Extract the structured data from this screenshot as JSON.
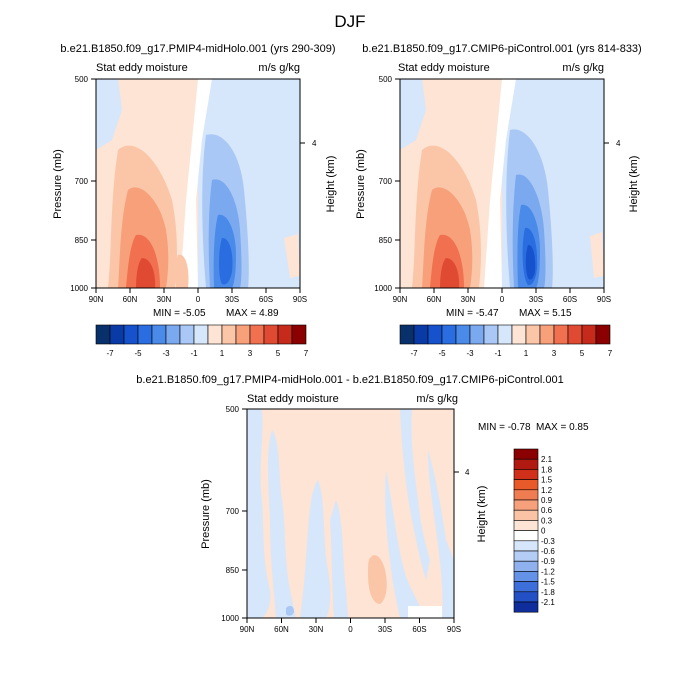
{
  "figure": {
    "season": "DJF",
    "panel_titles": [
      "b.e21.B1850.f09_g17.PMIP4-midHolo.001 (yrs 290-309)",
      "b.e21.B1850.f09_g17.CMIP6-piControl.001 (yrs 814-833)",
      "b.e21.B1850.f09_g17.PMIP4-midHolo.001 - b.e21.B1850.f09_g17.CMIP6-piControl.001"
    ]
  },
  "chart_data": [
    {
      "type": "heatmap",
      "title": "b.e21.B1850.f09_g17.PMIP4-midHolo.001 (yrs 290-309)",
      "left_label": "Stat eddy moisture",
      "right_label": "m/s g/kg",
      "ylabel": "Pressure (mb)",
      "ylabel_right": "Height (km)",
      "x_ticks": [
        "90N",
        "60N",
        "30N",
        "0",
        "30S",
        "60S",
        "90S"
      ],
      "y_ticks": [
        "500",
        "700",
        "850",
        "1000"
      ],
      "y_right_ticks": [
        "4"
      ],
      "min_label": "MIN =  -5.05",
      "max_label": "MAX =   4.89",
      "colorbar_labels": [
        "-7",
        "-5",
        "-3",
        "-1",
        "1",
        "3",
        "5",
        "7"
      ]
    },
    {
      "type": "heatmap",
      "title": "b.e21.B1850.f09_g17.CMIP6-piControl.001 (yrs 814-833)",
      "left_label": "Stat eddy moisture",
      "right_label": "m/s g/kg",
      "ylabel": "Pressure (mb)",
      "ylabel_right": "Height (km)",
      "x_ticks": [
        "90N",
        "60N",
        "30N",
        "0",
        "30S",
        "60S",
        "90S"
      ],
      "y_ticks": [
        "500",
        "700",
        "850",
        "1000"
      ],
      "y_right_ticks": [
        "4"
      ],
      "min_label": "MIN =  -5.47",
      "max_label": "MAX =   5.15",
      "colorbar_labels": [
        "-7",
        "-5",
        "-3",
        "-1",
        "1",
        "3",
        "5",
        "7"
      ]
    },
    {
      "type": "heatmap",
      "title": "b.e21.B1850.f09_g17.PMIP4-midHolo.001 - b.e21.B1850.f09_g17.CMIP6-piControl.001",
      "left_label": "Stat eddy moisture",
      "right_label": "m/s g/kg",
      "ylabel": "Pressure (mb)",
      "ylabel_right": "Height (km)",
      "x_ticks": [
        "90N",
        "60N",
        "30N",
        "0",
        "30S",
        "60S",
        "90S"
      ],
      "y_ticks": [
        "500",
        "700",
        "850",
        "1000"
      ],
      "y_right_ticks": [
        "4"
      ],
      "min_label": "MIN =  -0.78",
      "max_label": "MAX =   0.85",
      "colorbar_labels": [
        "2.1",
        "1.8",
        "1.5",
        "1.2",
        "0.9",
        "0.6",
        "0.3",
        "0",
        "-0.3",
        "-0.6",
        "-0.9",
        "-1.2",
        "-1.5",
        "-1.8",
        "-2.1"
      ]
    }
  ],
  "colors": {
    "full_scale": [
      "#08306b",
      "#0a3aa6",
      "#1552cc",
      "#2a6de0",
      "#4a8ae8",
      "#7aa9ef",
      "#aac8f5",
      "#d6e6fb",
      "#fde4d4",
      "#fbc6a8",
      "#f7a07a",
      "#f07050",
      "#e04a32",
      "#c62a1a",
      "#8b0000"
    ],
    "diff_scale": [
      "#8b0000",
      "#b01a10",
      "#d0301a",
      "#e85a2a",
      "#f07d52",
      "#f6a07c",
      "#fbc3a6",
      "#fde4d4",
      "#ffffff",
      "#d6e6fb",
      "#b4cdf4",
      "#8fb2ee",
      "#6392e6",
      "#3d6fda",
      "#2450c6",
      "#0f2e9c"
    ],
    "bg_neg": "#d6e6fb",
    "bg_pos": "#fde4d4"
  }
}
